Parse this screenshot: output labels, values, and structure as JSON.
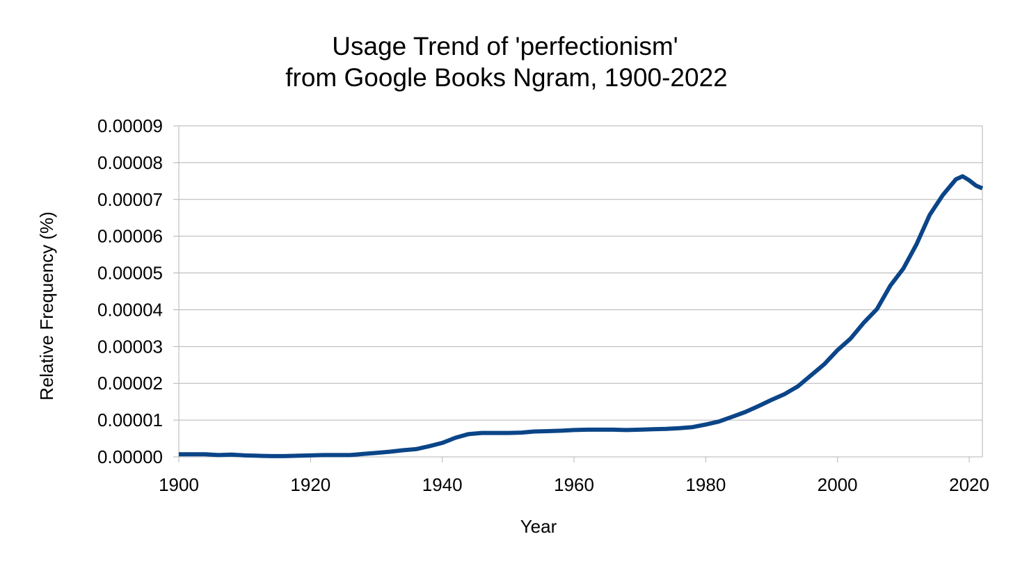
{
  "chart_data": {
    "type": "line",
    "title_lines": [
      "Usage Trend of 'perfectionism'",
      "from Google Books Ngram, 1900-2022"
    ],
    "xlabel": "Year",
    "ylabel": "Relative Frequency (%)",
    "xlim": [
      1900,
      2022
    ],
    "ylim": [
      0,
      9e-05
    ],
    "x_ticks": [
      1900,
      1920,
      1940,
      1960,
      1980,
      2000,
      2020
    ],
    "x_tick_labels": [
      "1900",
      "1920",
      "1940",
      "1960",
      "1980",
      "2000",
      "2020"
    ],
    "y_ticks": [
      0,
      1e-05,
      2e-05,
      3e-05,
      4e-05,
      5e-05,
      6e-05,
      7e-05,
      8e-05,
      9e-05
    ],
    "y_tick_labels": [
      "0.00000",
      "0.00001",
      "0.00002",
      "0.00003",
      "0.00004",
      "0.00005",
      "0.00006",
      "0.00007",
      "0.00008",
      "0.00009"
    ],
    "grid": "horizontal",
    "legend": "none",
    "line_color": "#0b4588",
    "grid_color": "#b3b3b3",
    "series": [
      {
        "name": "perfectionism",
        "x": [
          1900,
          1902,
          1904,
          1906,
          1908,
          1910,
          1912,
          1914,
          1916,
          1918,
          1920,
          1922,
          1924,
          1926,
          1928,
          1930,
          1932,
          1934,
          1936,
          1938,
          1940,
          1942,
          1944,
          1946,
          1948,
          1950,
          1952,
          1954,
          1956,
          1958,
          1960,
          1962,
          1964,
          1966,
          1968,
          1970,
          1972,
          1974,
          1976,
          1978,
          1980,
          1982,
          1984,
          1986,
          1988,
          1990,
          1992,
          1994,
          1996,
          1998,
          2000,
          2002,
          2004,
          2006,
          2008,
          2010,
          2012,
          2014,
          2016,
          2018,
          2019,
          2020,
          2021,
          2022
        ],
        "values": [
          7e-07,
          7e-07,
          7e-07,
          5e-07,
          6e-07,
          4e-07,
          3e-07,
          2e-07,
          2e-07,
          3e-07,
          4e-07,
          5e-07,
          5e-07,
          5e-07,
          8e-07,
          1.1e-06,
          1.4e-06,
          1.8e-06,
          2.1e-06,
          2.9e-06,
          3.8e-06,
          5.2e-06,
          6.2e-06,
          6.5e-06,
          6.5e-06,
          6.5e-06,
          6.6e-06,
          6.9e-06,
          7e-06,
          7.1e-06,
          7.3e-06,
          7.4e-06,
          7.4e-06,
          7.4e-06,
          7.3e-06,
          7.4e-06,
          7.5e-06,
          7.6e-06,
          7.8e-06,
          8.1e-06,
          8.8e-06,
          9.6e-06,
          1.09e-05,
          1.22e-05,
          1.38e-05,
          1.55e-05,
          1.71e-05,
          1.92e-05,
          2.22e-05,
          2.52e-05,
          2.9e-05,
          3.22e-05,
          3.65e-05,
          4.02e-05,
          4.65e-05,
          5.12e-05,
          5.78e-05,
          6.58e-05,
          7.12e-05,
          7.55e-05,
          7.63e-05,
          7.52e-05,
          7.38e-05,
          7.3e-05
        ]
      }
    ]
  }
}
